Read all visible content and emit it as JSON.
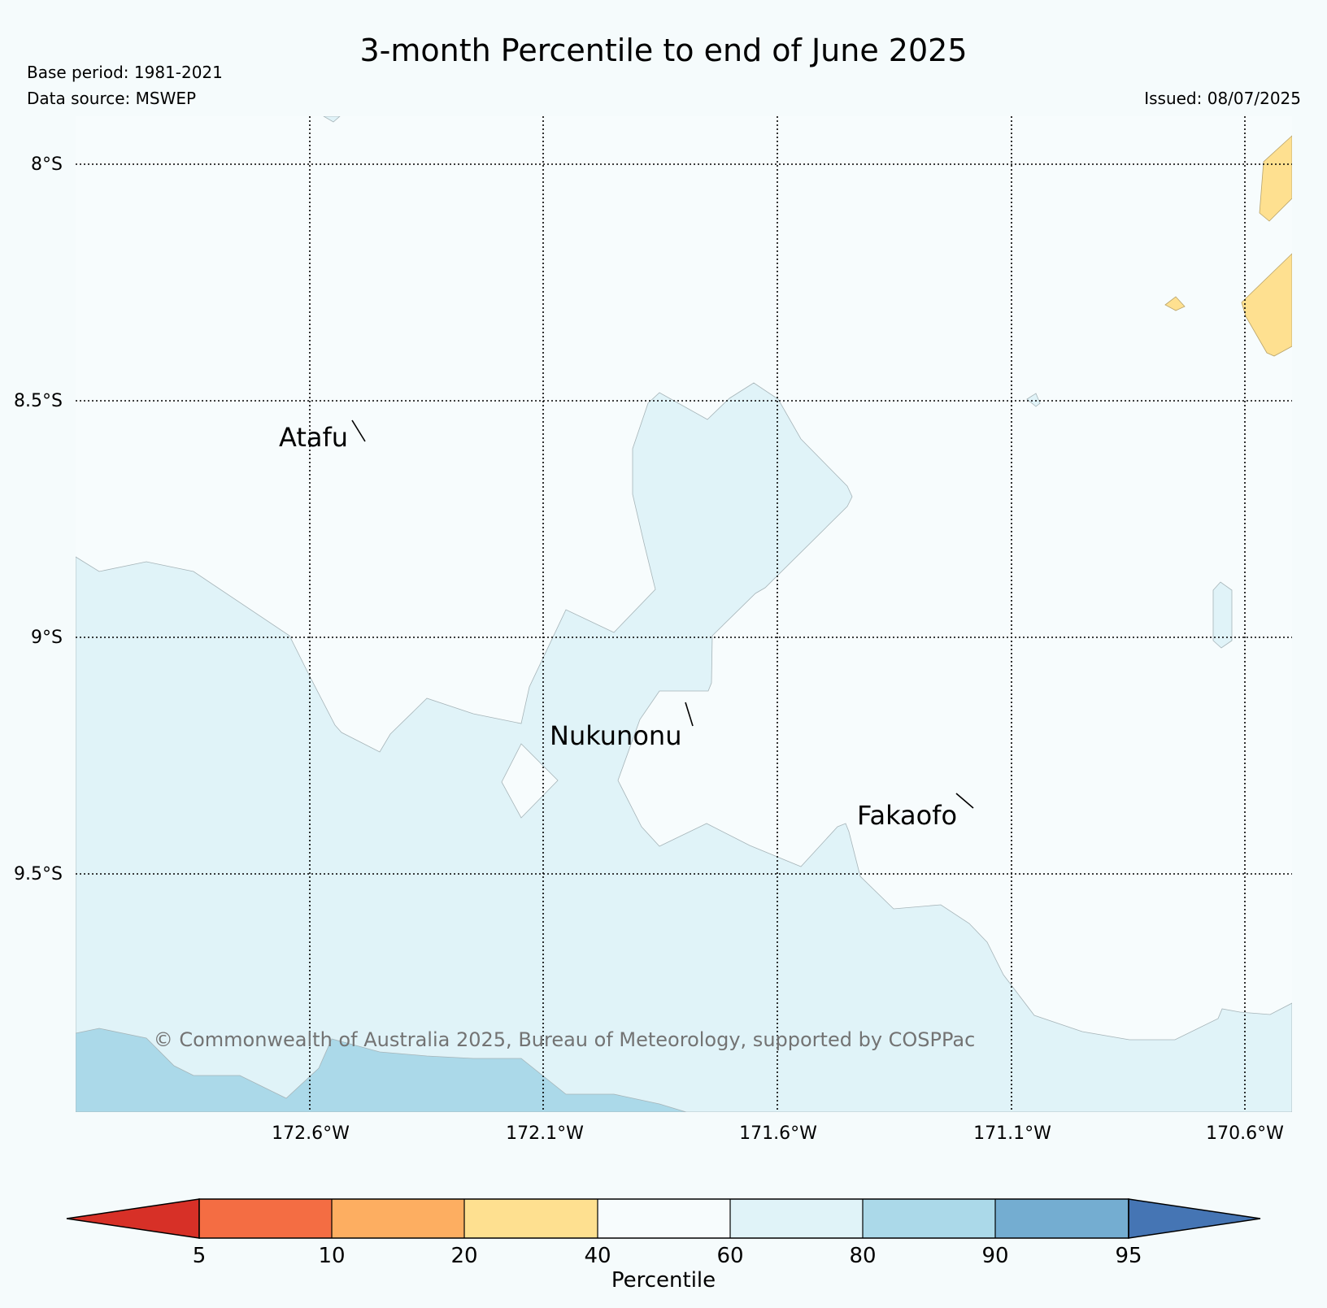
{
  "header": {
    "title": "3-month Percentile to end of June 2025",
    "base_period": "Base period: 1981-2021",
    "data_source": "Data source: MSWEP",
    "issued": "Issued: 08/07/2025"
  },
  "map": {
    "lat_labels": [
      "8°S",
      "8.5°S",
      "9°S",
      "9.5°S"
    ],
    "lon_labels": [
      "172.6°W",
      "172.1°W",
      "171.6°W",
      "171.1°W",
      "170.6°W"
    ],
    "places": [
      {
        "name": "Atafu"
      },
      {
        "name": "Nukunonu"
      },
      {
        "name": "Fakaofo"
      }
    ],
    "copyright": "© Commonwealth of Australia 2025, Bureau of Meteorology, supported by COSPPac"
  },
  "colorbar": {
    "title": "Percentile",
    "ticks": [
      "5",
      "10",
      "20",
      "40",
      "60",
      "80",
      "90",
      "95"
    ],
    "colors": {
      "below_5": "#d73027",
      "5_10": "#f46d43",
      "10_20": "#fdae61",
      "20_40": "#fee090",
      "40_60": "#f7fcfd",
      "60_80": "#e0f3f8",
      "80_90": "#abd9e9",
      "90_95": "#74add1",
      "above_95": "#4575b4"
    }
  }
}
